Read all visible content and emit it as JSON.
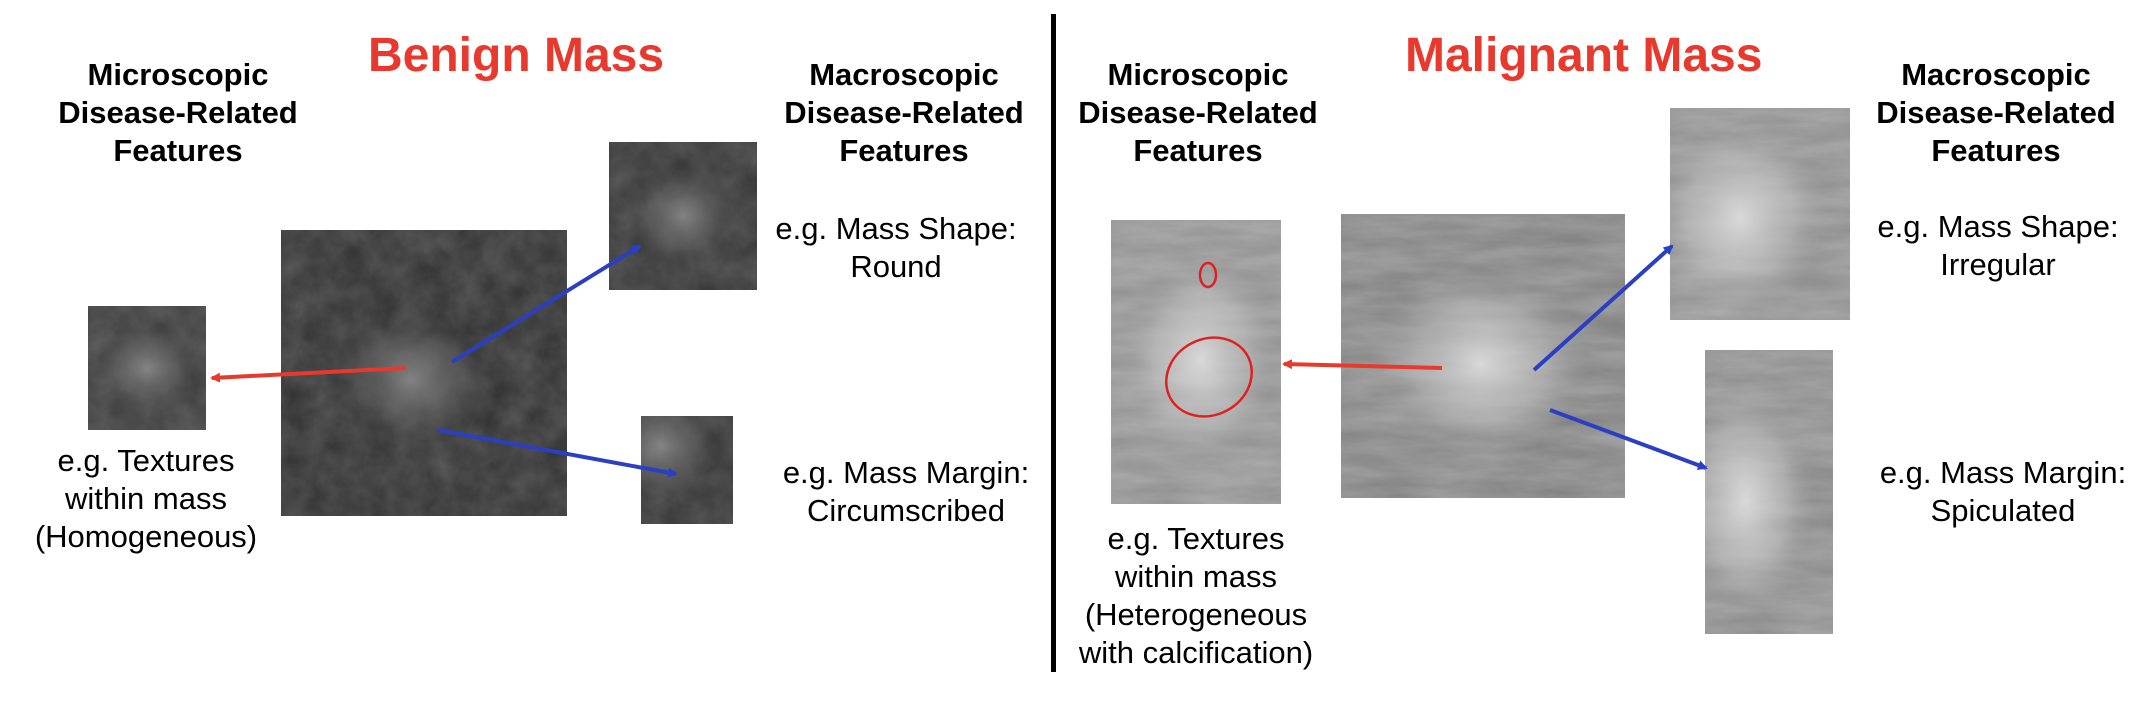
{
  "benign": {
    "title": "Benign Mass",
    "micro_heading": [
      "Microscopic",
      "Disease-Related",
      "Features"
    ],
    "macro_heading": [
      "Macroscopic",
      "Disease-Related",
      "Features"
    ],
    "micro_desc": [
      "e.g. Textures",
      "within mass",
      "(Homogeneous)"
    ],
    "shape_desc": [
      "e.g. Mass Shape:",
      "Round"
    ],
    "margin_desc": [
      "e.g. Mass Margin:",
      "Circumscribed"
    ]
  },
  "malignant": {
    "title": "Malignant Mass",
    "micro_heading": [
      "Microscopic",
      "Disease-Related",
      "Features"
    ],
    "macro_heading": [
      "Macroscopic",
      "Disease-Related",
      "Features"
    ],
    "micro_desc": [
      "e.g. Textures",
      "within mass",
      "(Heterogeneous",
      "with calcification)"
    ],
    "shape_desc": [
      "e.g. Mass Shape:",
      "Irregular"
    ],
    "margin_desc": [
      "e.g. Mass Margin:",
      "Spiculated"
    ]
  },
  "colors": {
    "title_red": "#e8392e",
    "micro_arrow": "#e8392e",
    "macro_arrow": "#2b3fc4",
    "calcification_circle": "#e02020"
  }
}
